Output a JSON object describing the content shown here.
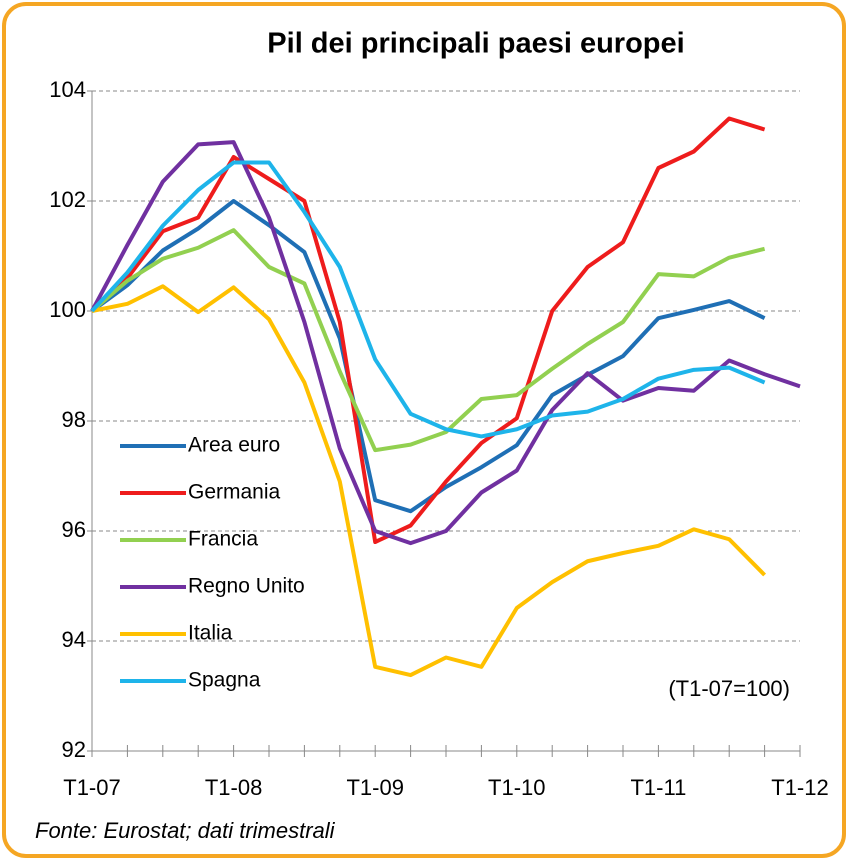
{
  "chart_data": {
    "type": "line",
    "title": "Pil dei principali paesi europei",
    "annotation": "(T1-07=100)",
    "source": "Fonte: Eurostat; dati trimestrali",
    "categories": [
      "T1-07",
      null,
      null,
      null,
      "T1-08",
      null,
      null,
      null,
      "T1-09",
      null,
      null,
      null,
      "T1-10",
      null,
      null,
      null,
      "T1-11",
      null,
      null,
      null,
      "T1-12"
    ],
    "ylim": [
      92,
      104
    ],
    "yticks": [
      92,
      94,
      96,
      98,
      100,
      102,
      104
    ],
    "grid": true,
    "legend": "left",
    "series": [
      {
        "name": "Area euro",
        "color": "#1f6fb5",
        "values": [
          100,
          100.47,
          101.1,
          101.5,
          102.0,
          101.56,
          101.07,
          99.5,
          96.56,
          96.36,
          96.8,
          97.16,
          97.56,
          98.47,
          98.84,
          99.18,
          99.87,
          100.02,
          100.18,
          99.87,
          null
        ]
      },
      {
        "name": "Germania",
        "color": "#ee1c1c",
        "values": [
          100,
          100.6,
          101.45,
          101.7,
          102.8,
          102.4,
          102.0,
          99.8,
          95.8,
          96.1,
          96.9,
          97.6,
          98.05,
          100.0,
          100.8,
          101.25,
          102.6,
          102.9,
          103.5,
          103.3,
          null
        ]
      },
      {
        "name": "Francia",
        "color": "#92d050",
        "values": [
          100,
          100.55,
          100.95,
          101.15,
          101.47,
          100.8,
          100.5,
          98.9,
          97.47,
          97.57,
          97.8,
          98.4,
          98.47,
          98.95,
          99.4,
          99.8,
          100.67,
          100.63,
          100.97,
          101.13,
          null
        ]
      },
      {
        "name": "Regno Unito",
        "color": "#7030a0",
        "values": [
          100,
          101.2,
          102.35,
          103.03,
          103.07,
          101.7,
          99.8,
          97.5,
          96.0,
          95.78,
          96.0,
          96.7,
          97.1,
          98.2,
          98.87,
          98.37,
          98.6,
          98.55,
          99.1,
          98.85,
          98.63
        ]
      },
      {
        "name": "Italia",
        "color": "#ffc000",
        "values": [
          100,
          100.13,
          100.45,
          99.98,
          100.43,
          99.85,
          98.7,
          96.9,
          93.53,
          93.38,
          93.7,
          93.53,
          94.6,
          95.07,
          95.45,
          95.6,
          95.73,
          96.03,
          95.85,
          95.2,
          null
        ]
      },
      {
        "name": "Spagna",
        "color": "#1eb4ea",
        "values": [
          100,
          100.7,
          101.55,
          102.2,
          102.7,
          102.7,
          101.8,
          100.8,
          99.12,
          98.13,
          97.85,
          97.72,
          97.85,
          98.1,
          98.17,
          98.4,
          98.77,
          98.93,
          98.97,
          98.7,
          null
        ]
      }
    ]
  }
}
